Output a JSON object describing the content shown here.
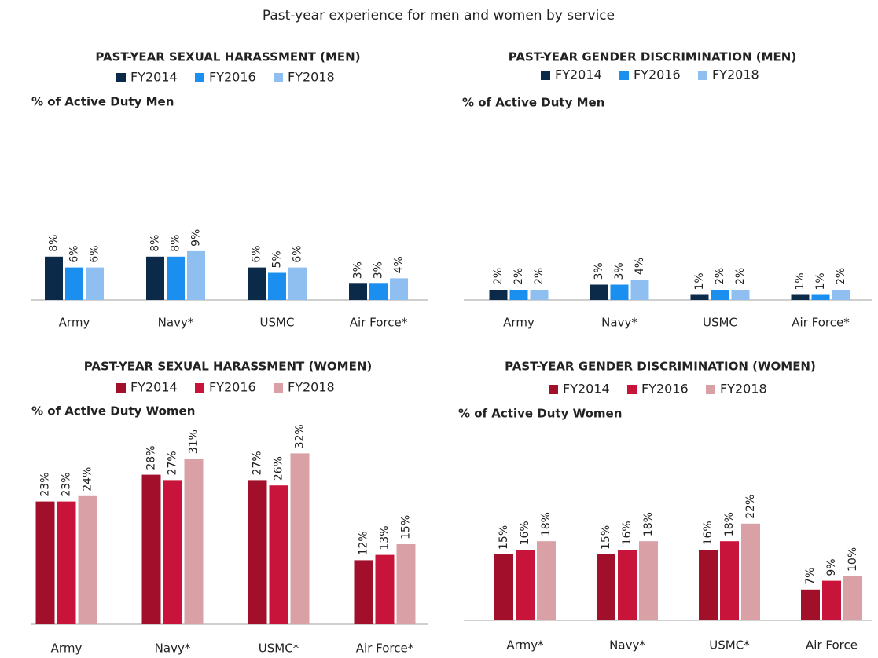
{
  "title": "Past-year experience for men and women by service",
  "chart_data": [
    {
      "type": "bar",
      "title": "PAST-YEAR SEXUAL HARASSMENT (MEN)",
      "y_label": "% of Active Duty Men",
      "categories": [
        "Army",
        "Navy*",
        "USMC",
        "Air Force*"
      ],
      "series": [
        {
          "name": "FY2014",
          "color": "#0b2a4a",
          "values": [
            8,
            8,
            6,
            3
          ],
          "value_labels": [
            "8%",
            "8%",
            "6%",
            "3%"
          ]
        },
        {
          "name": "FY2016",
          "color": "#1a8ff0",
          "values": [
            6,
            8,
            5,
            3
          ],
          "value_labels": [
            "6%",
            "8%",
            "5%",
            "3%"
          ]
        },
        {
          "name": "FY2018",
          "color": "#8fbff0",
          "values": [
            6,
            9,
            6,
            4
          ],
          "value_labels": [
            "6%",
            "9%",
            "6%",
            "4%"
          ]
        }
      ]
    },
    {
      "type": "bar",
      "title": "PAST-YEAR GENDER DISCRIMINATION (MEN)",
      "y_label": "% of Active Duty Men",
      "categories": [
        "Army",
        "Navy*",
        "USMC",
        "Air Force*"
      ],
      "series": [
        {
          "name": "FY2014",
          "color": "#0b2a4a",
          "values": [
            2,
            3,
            1,
            1
          ],
          "value_labels": [
            "2%",
            "3%",
            "1%",
            "1%"
          ]
        },
        {
          "name": "FY2016",
          "color": "#1a8ff0",
          "values": [
            2,
            3,
            2,
            1
          ],
          "value_labels": [
            "2%",
            "3%",
            "2%",
            "1%"
          ]
        },
        {
          "name": "FY2018",
          "color": "#8fbff0",
          "values": [
            2,
            4,
            2,
            2
          ],
          "value_labels": [
            "2%",
            "4%",
            "2%",
            "2%"
          ]
        }
      ]
    },
    {
      "type": "bar",
      "title": "PAST-YEAR SEXUAL HARASSMENT (WOMEN)",
      "y_label": "% of Active Duty Women",
      "categories": [
        "Army",
        "Navy*",
        "USMC*",
        "Air Force*"
      ],
      "series": [
        {
          "name": "FY2014",
          "color": "#a10f2b",
          "values": [
            23,
            28,
            27,
            12
          ],
          "value_labels": [
            "23%",
            "28%",
            "27%",
            "12%"
          ]
        },
        {
          "name": "FY2016",
          "color": "#c8143a",
          "values": [
            23,
            27,
            26,
            13
          ],
          "value_labels": [
            "23%",
            "27%",
            "26%",
            "13%"
          ]
        },
        {
          "name": "FY2018",
          "color": "#d9a0a6",
          "values": [
            24,
            31,
            32,
            15
          ],
          "value_labels": [
            "24%",
            "31%",
            "32%",
            "15%"
          ]
        }
      ]
    },
    {
      "type": "bar",
      "title": "PAST-YEAR GENDER DISCRIMINATION (WOMEN)",
      "y_label": "% of Active Duty Women",
      "categories": [
        "Army*",
        "Navy*",
        "USMC*",
        "Air Force"
      ],
      "series": [
        {
          "name": "FY2014",
          "color": "#a10f2b",
          "values": [
            15,
            15,
            16,
            7
          ],
          "value_labels": [
            "15%",
            "15%",
            "16%",
            "7%"
          ]
        },
        {
          "name": "FY2016",
          "color": "#c8143a",
          "values": [
            16,
            16,
            18,
            9
          ],
          "value_labels": [
            "16%",
            "16%",
            "18%",
            "9%"
          ]
        },
        {
          "name": "FY2018",
          "color": "#d9a0a6",
          "values": [
            18,
            18,
            22,
            10
          ],
          "value_labels": [
            "18%",
            "18%",
            "22%",
            "10%"
          ]
        }
      ]
    }
  ]
}
